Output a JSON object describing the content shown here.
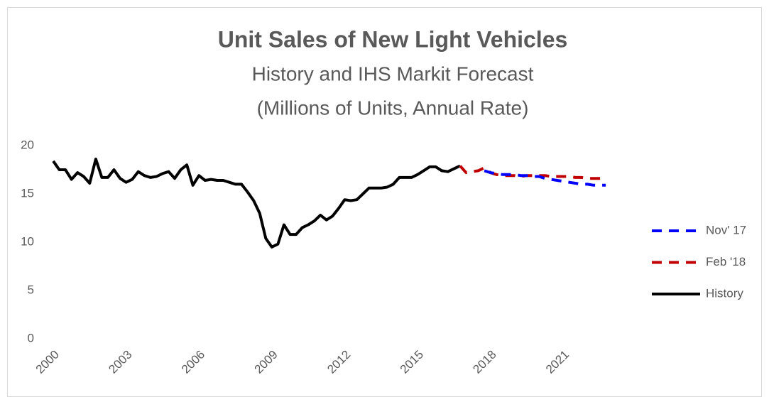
{
  "chart_data": {
    "type": "line",
    "title": "Unit Sales of New Light Vehicles",
    "subtitle": [
      "History and IHS Markit Forecast",
      "(Millions of Units, Annual Rate)"
    ],
    "categories": [
      "2000",
      null,
      null,
      null,
      null,
      null,
      null,
      null,
      null,
      null,
      null,
      null,
      "2003",
      null,
      null,
      null,
      null,
      null,
      null,
      null,
      null,
      null,
      null,
      null,
      "2006",
      null,
      null,
      null,
      null,
      null,
      null,
      null,
      null,
      null,
      null,
      null,
      "2009",
      null,
      null,
      null,
      null,
      null,
      null,
      null,
      null,
      null,
      null,
      null,
      "2012",
      null,
      null,
      null,
      null,
      null,
      null,
      null,
      null,
      null,
      null,
      null,
      "2015",
      null,
      null,
      null,
      null,
      null,
      null,
      null,
      null,
      null,
      null,
      null,
      "2018",
      null,
      null,
      null,
      null,
      null,
      null,
      null,
      null,
      null,
      null,
      null,
      "2021",
      null,
      null,
      null,
      null,
      null,
      null,
      null
    ],
    "series": [
      {
        "name": "Nov' 17",
        "color": "#0000ff",
        "line_style": "dashed",
        "values": [
          null,
          null,
          null,
          null,
          null,
          null,
          null,
          null,
          null,
          null,
          null,
          null,
          null,
          null,
          null,
          null,
          null,
          null,
          null,
          null,
          null,
          null,
          null,
          null,
          null,
          null,
          null,
          null,
          null,
          null,
          null,
          null,
          null,
          null,
          null,
          null,
          null,
          null,
          null,
          null,
          null,
          null,
          null,
          null,
          null,
          null,
          null,
          null,
          null,
          null,
          null,
          null,
          null,
          null,
          null,
          null,
          null,
          null,
          null,
          null,
          null,
          null,
          null,
          null,
          null,
          null,
          null,
          null,
          null,
          null,
          null,
          17.4,
          17.2,
          17.1,
          17.0,
          17.0,
          17.0,
          16.9,
          16.9,
          16.8,
          16.8,
          16.6,
          16.5,
          16.4,
          16.3,
          16.2,
          16.1,
          16.0,
          16.0,
          15.9,
          15.9,
          15.9
        ]
      },
      {
        "name": "Feb '18",
        "color": "#c00000",
        "line_style": "dashed",
        "values": [
          null,
          null,
          null,
          null,
          null,
          null,
          null,
          null,
          null,
          null,
          null,
          null,
          null,
          null,
          null,
          null,
          null,
          null,
          null,
          null,
          null,
          null,
          null,
          null,
          null,
          null,
          null,
          null,
          null,
          null,
          null,
          null,
          null,
          null,
          null,
          null,
          null,
          null,
          null,
          null,
          null,
          null,
          null,
          null,
          null,
          null,
          null,
          null,
          null,
          null,
          null,
          null,
          null,
          null,
          null,
          null,
          null,
          null,
          null,
          null,
          null,
          null,
          null,
          null,
          null,
          null,
          null,
          17.9,
          17.2,
          17.3,
          17.4,
          17.7,
          17.2,
          17.0,
          16.9,
          16.9,
          16.9,
          16.8,
          16.9,
          16.9,
          16.9,
          16.9,
          16.8,
          16.8,
          16.8,
          16.8,
          16.7,
          16.7,
          16.6,
          16.6,
          16.6,
          16.6
        ]
      },
      {
        "name": "History",
        "color": "#000000",
        "line_style": "solid",
        "values": [
          18.4,
          17.5,
          17.5,
          16.5,
          17.2,
          16.8,
          16.1,
          18.6,
          16.7,
          16.7,
          17.5,
          16.6,
          16.2,
          16.5,
          17.3,
          16.9,
          16.7,
          16.8,
          17.1,
          17.3,
          16.6,
          17.5,
          18.0,
          15.9,
          16.9,
          16.4,
          16.5,
          16.4,
          16.4,
          16.2,
          16.0,
          16.0,
          15.2,
          14.3,
          13.0,
          10.4,
          9.5,
          9.8,
          11.8,
          10.8,
          10.8,
          11.5,
          11.8,
          12.2,
          12.8,
          12.3,
          12.7,
          13.5,
          14.4,
          14.3,
          14.4,
          15.0,
          15.6,
          15.6,
          15.6,
          15.7,
          16.0,
          16.7,
          16.7,
          16.7,
          17.0,
          17.4,
          17.8,
          17.8,
          17.4,
          17.3,
          17.6,
          17.9,
          null,
          null,
          null,
          null,
          null,
          null,
          null,
          null,
          null,
          null,
          null,
          null,
          null,
          null,
          null,
          null,
          null,
          null,
          null,
          null,
          null,
          null,
          null,
          null
        ]
      }
    ],
    "ylim": [
      0,
      20
    ],
    "yticks": [
      0,
      5,
      10,
      15,
      20
    ],
    "grid": false,
    "legend": "right"
  }
}
